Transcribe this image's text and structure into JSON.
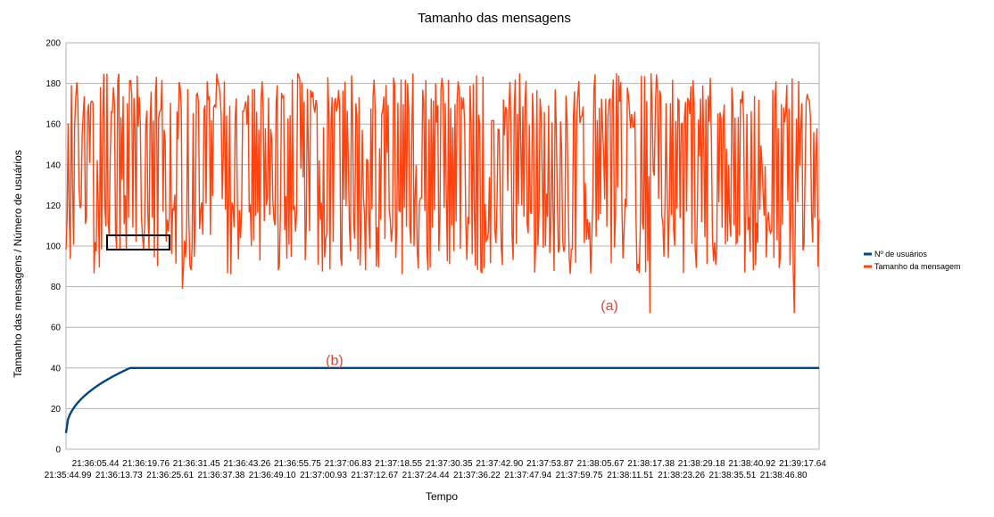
{
  "chart_data": {
    "type": "line",
    "title": "Tamanho das mensagens",
    "xlabel": "Tempo",
    "ylabel": "Tamanho das mensagens / Número de usuários",
    "ylim": [
      0,
      200
    ],
    "yticks": [
      0,
      20,
      40,
      60,
      80,
      100,
      120,
      140,
      160,
      180,
      200
    ],
    "grid": true,
    "legend_position": "right",
    "x_tick_labels_upper": [
      "21:36:05.44",
      "21:36:19.76",
      "21:36:31.45",
      "21:36:43.26",
      "21:36:55.75",
      "21:37:06.83",
      "21:37:18.55",
      "21:37:30.35",
      "21:37:42.90",
      "21:37:53.87",
      "21:38:05.67",
      "21:38:17.38",
      "21:38:29.18",
      "21:38:40.92",
      "21:39:17.64"
    ],
    "x_tick_labels_lower": [
      "21:35:44.99",
      "21:36:13.73",
      "21:36:25.61",
      "21:36:37.38",
      "21:36:49.10",
      "21:37:00.93",
      "21:37:12.67",
      "21:37:24.44",
      "21:37:36.22",
      "21:37:47.94",
      "21:37:59.75",
      "21:38:11.51",
      "21:38:23.26",
      "21:38:35.51",
      "21:38:46.80"
    ],
    "series": [
      {
        "name": "Nº de usuários",
        "color": "#004586",
        "profile": {
          "start": 8,
          "plateau": 40,
          "plateau_reached_fraction": 0.085
        }
      },
      {
        "name": "Tamanho da mensagem",
        "color": "#ff420e",
        "profile": {
          "typical_min": 86,
          "typical_max": 185,
          "min": 67,
          "max": 185
        }
      }
    ],
    "annotations": [
      {
        "text": "(a)",
        "x_fraction": 0.71,
        "y": 71
      },
      {
        "text": "(b)",
        "x_fraction": 0.345,
        "y": 44
      }
    ]
  }
}
